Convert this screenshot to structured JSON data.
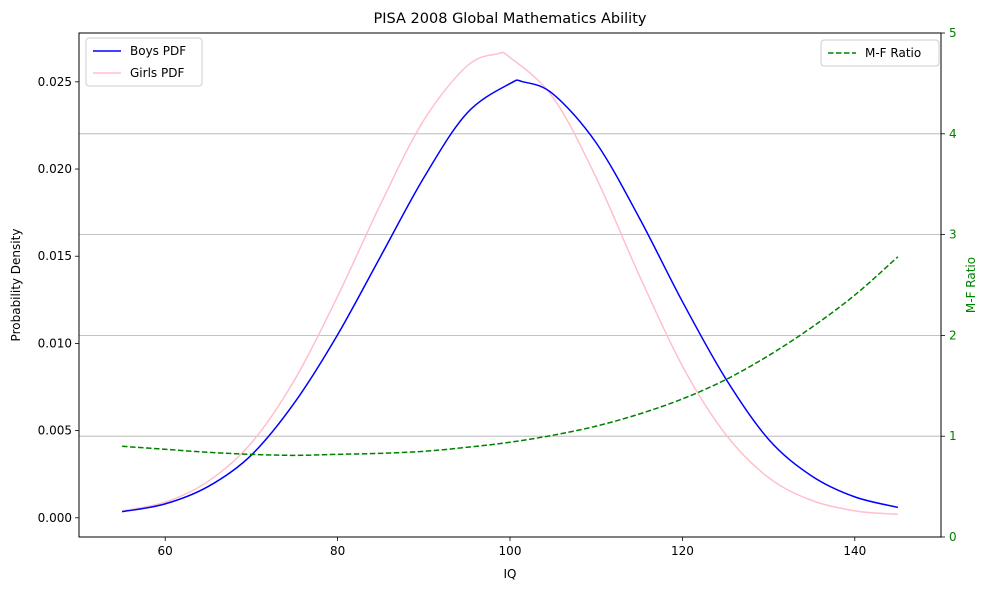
{
  "chart_data": {
    "type": "line",
    "title": "PISA 2008 Global Mathematics Ability",
    "xlabel": "IQ",
    "ylabel": "Probability Density",
    "y2label": "M-F Ratio",
    "xlim": [
      50,
      150
    ],
    "ylim": [
      -0.0011,
      0.0278
    ],
    "y2lim": [
      0,
      5
    ],
    "xticks": [
      60,
      80,
      100,
      120,
      140
    ],
    "xtick_labels": [
      "60",
      "80",
      "100",
      "120",
      "140"
    ],
    "yticks": [
      0,
      0.005,
      0.01,
      0.015,
      0.02,
      0.025
    ],
    "ytick_labels": [
      "0.000",
      "0.005",
      "0.010",
      "0.015",
      "0.020",
      "0.025"
    ],
    "y2ticks": [
      0,
      1,
      2,
      3,
      4,
      5
    ],
    "y2tick_labels": [
      "0",
      "1",
      "2",
      "3",
      "4",
      "5"
    ],
    "grid": "horizontal lines at right-axis ticks",
    "legend_left": "upper-left",
    "legend_right": "upper-right",
    "colors": {
      "boys": "#0000ff",
      "girls": "#ffc0cb",
      "ratio": "#008000",
      "y2axis": "#008000"
    },
    "series": [
      {
        "name": "Boys PDF",
        "axis": "left",
        "style": "solid",
        "x": [
          55,
          60,
          65,
          70,
          75,
          80,
          85,
          90,
          95,
          100,
          101.5,
          105,
          110,
          115,
          120,
          125,
          130,
          135,
          140,
          145
        ],
        "values": [
          0.00035,
          0.0008,
          0.0018,
          0.0036,
          0.0066,
          0.0105,
          0.015,
          0.0195,
          0.0232,
          0.0249,
          0.025,
          0.0243,
          0.0215,
          0.0172,
          0.0124,
          0.008,
          0.0045,
          0.0024,
          0.0012,
          0.0006
        ]
      },
      {
        "name": "Girls PDF",
        "axis": "left",
        "style": "solid",
        "x": [
          55,
          60,
          65,
          70,
          75,
          80,
          85,
          90,
          95,
          98.5,
          100,
          105,
          110,
          115,
          120,
          125,
          130,
          135,
          140,
          145
        ],
        "values": [
          0.0004,
          0.0009,
          0.0021,
          0.0043,
          0.0079,
          0.0127,
          0.018,
          0.0228,
          0.0259,
          0.0266,
          0.0264,
          0.0241,
          0.0195,
          0.0139,
          0.0087,
          0.0048,
          0.0023,
          0.001,
          0.0004,
          0.0002
        ]
      },
      {
        "name": "M-F Ratio",
        "axis": "right",
        "style": "dashed",
        "x": [
          55,
          60,
          65,
          70,
          75,
          80,
          85,
          90,
          95,
          100,
          105,
          110,
          115,
          120,
          125,
          130,
          135,
          140,
          145
        ],
        "values": [
          0.9,
          0.87,
          0.84,
          0.82,
          0.81,
          0.82,
          0.83,
          0.85,
          0.89,
          0.94,
          1.01,
          1.1,
          1.22,
          1.37,
          1.56,
          1.8,
          2.08,
          2.4,
          2.78
        ]
      }
    ]
  }
}
